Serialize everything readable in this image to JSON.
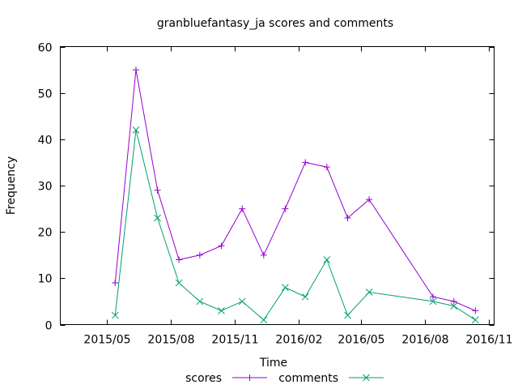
{
  "chart_data": {
    "type": "line",
    "title": "granbluefantasy_ja scores and comments",
    "xlabel": "Time",
    "ylabel": "Frequency",
    "ylim": [
      0,
      60
    ],
    "xlim": [
      "2015-03-14",
      "2016-11-28"
    ],
    "yticks": [
      0,
      10,
      20,
      30,
      40,
      50,
      60
    ],
    "xticks": [
      {
        "date": "2015-05-20",
        "label": "2015/05"
      },
      {
        "date": "2015-08-20",
        "label": "2015/08"
      },
      {
        "date": "2015-11-20",
        "label": "2015/11"
      },
      {
        "date": "2016-02-20",
        "label": "2016/02"
      },
      {
        "date": "2016-05-20",
        "label": "2016/05"
      },
      {
        "date": "2016-08-20",
        "label": "2016/08"
      },
      {
        "date": "2016-11-20",
        "label": "2016/11"
      }
    ],
    "legend_position": "bottom",
    "grid": false,
    "series": [
      {
        "name": "scores",
        "color": "#9400d3",
        "marker": "plus",
        "points": [
          {
            "x": "2015-06-01",
            "y": 9
          },
          {
            "x": "2015-07-01",
            "y": 55
          },
          {
            "x": "2015-08-01",
            "y": 29
          },
          {
            "x": "2015-09-01",
            "y": 14
          },
          {
            "x": "2015-10-01",
            "y": 15
          },
          {
            "x": "2015-11-01",
            "y": 17
          },
          {
            "x": "2015-12-01",
            "y": 25
          },
          {
            "x": "2016-01-01",
            "y": 15
          },
          {
            "x": "2016-02-01",
            "y": 25
          },
          {
            "x": "2016-03-01",
            "y": 35
          },
          {
            "x": "2016-04-01",
            "y": 34
          },
          {
            "x": "2016-05-01",
            "y": 23
          },
          {
            "x": "2016-06-01",
            "y": 27
          },
          {
            "x": "2016-09-01",
            "y": 6
          },
          {
            "x": "2016-10-01",
            "y": 5
          },
          {
            "x": "2016-11-01",
            "y": 3
          }
        ]
      },
      {
        "name": "comments",
        "color": "#009e73",
        "marker": "cross",
        "points": [
          {
            "x": "2015-06-01",
            "y": 2
          },
          {
            "x": "2015-07-01",
            "y": 42
          },
          {
            "x": "2015-08-01",
            "y": 23
          },
          {
            "x": "2015-09-01",
            "y": 9
          },
          {
            "x": "2015-10-01",
            "y": 5
          },
          {
            "x": "2015-11-01",
            "y": 3
          },
          {
            "x": "2015-12-01",
            "y": 5
          },
          {
            "x": "2016-01-01",
            "y": 1
          },
          {
            "x": "2016-02-01",
            "y": 8
          },
          {
            "x": "2016-03-01",
            "y": 6
          },
          {
            "x": "2016-04-01",
            "y": 14
          },
          {
            "x": "2016-05-01",
            "y": 2
          },
          {
            "x": "2016-06-01",
            "y": 7
          },
          {
            "x": "2016-09-01",
            "y": 5
          },
          {
            "x": "2016-10-01",
            "y": 4
          },
          {
            "x": "2016-11-01",
            "y": 1
          }
        ]
      }
    ]
  }
}
